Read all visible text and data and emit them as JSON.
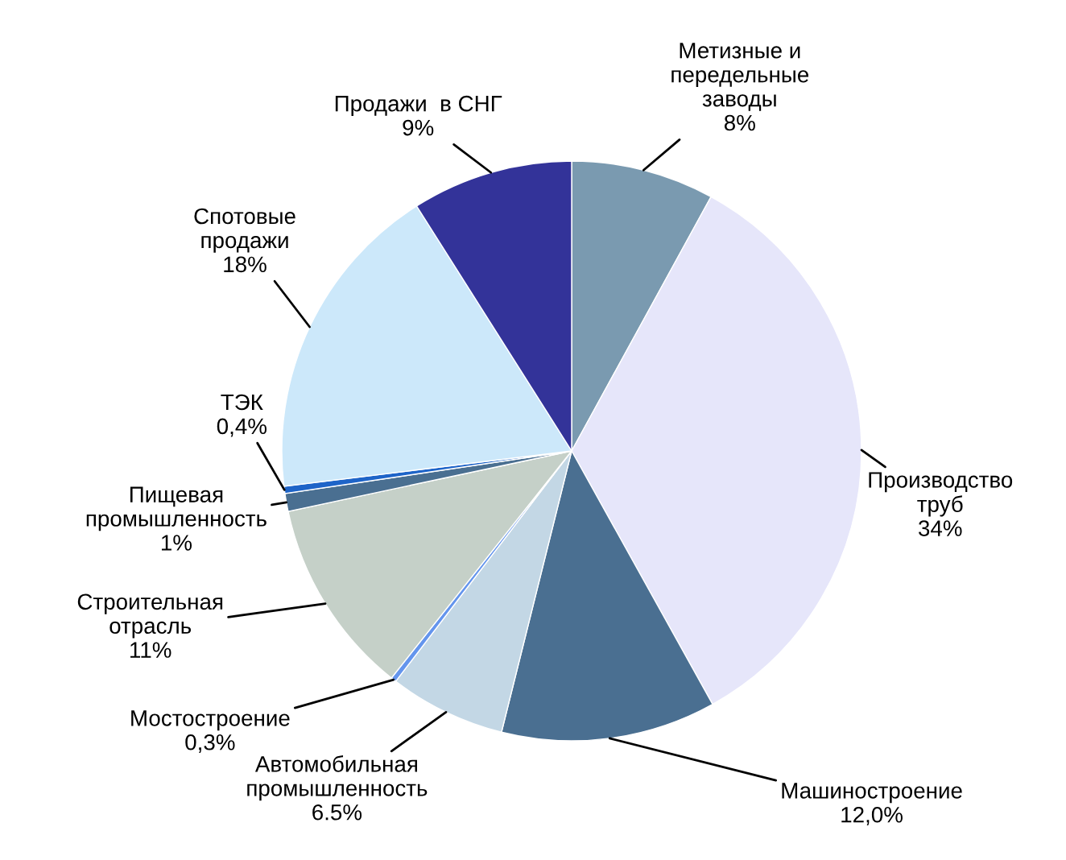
{
  "chart_data": {
    "type": "pie",
    "categories": [
      "Метизные и\nпередельные\nзаводы",
      "Производство\nтруб",
      "Машиностроение",
      "Автомобильная\nпромышленность",
      "Мостостроение",
      "Строительная\nотрасль",
      "Пищевая\nпромышленность",
      "ТЭК",
      "Спотовые\nпродажи",
      "Продажи  в СНГ"
    ],
    "values": [
      8,
      34,
      12.0,
      6.5,
      0.3,
      11,
      1,
      0.4,
      18,
      9
    ],
    "value_labels": [
      "8%",
      "34%",
      "12,0%",
      "6.5%",
      "0,3%",
      "11%",
      "1%",
      "0,4%",
      "18%",
      "9%"
    ],
    "colors": [
      "#7a9ab0",
      "#e6e6fa",
      "#4a6f91",
      "#c3d7e5",
      "#6495ed",
      "#c5d0c8",
      "#4a6f91",
      "#1e64c8",
      "#cce8fa",
      "#333399"
    ],
    "legend": false
  }
}
